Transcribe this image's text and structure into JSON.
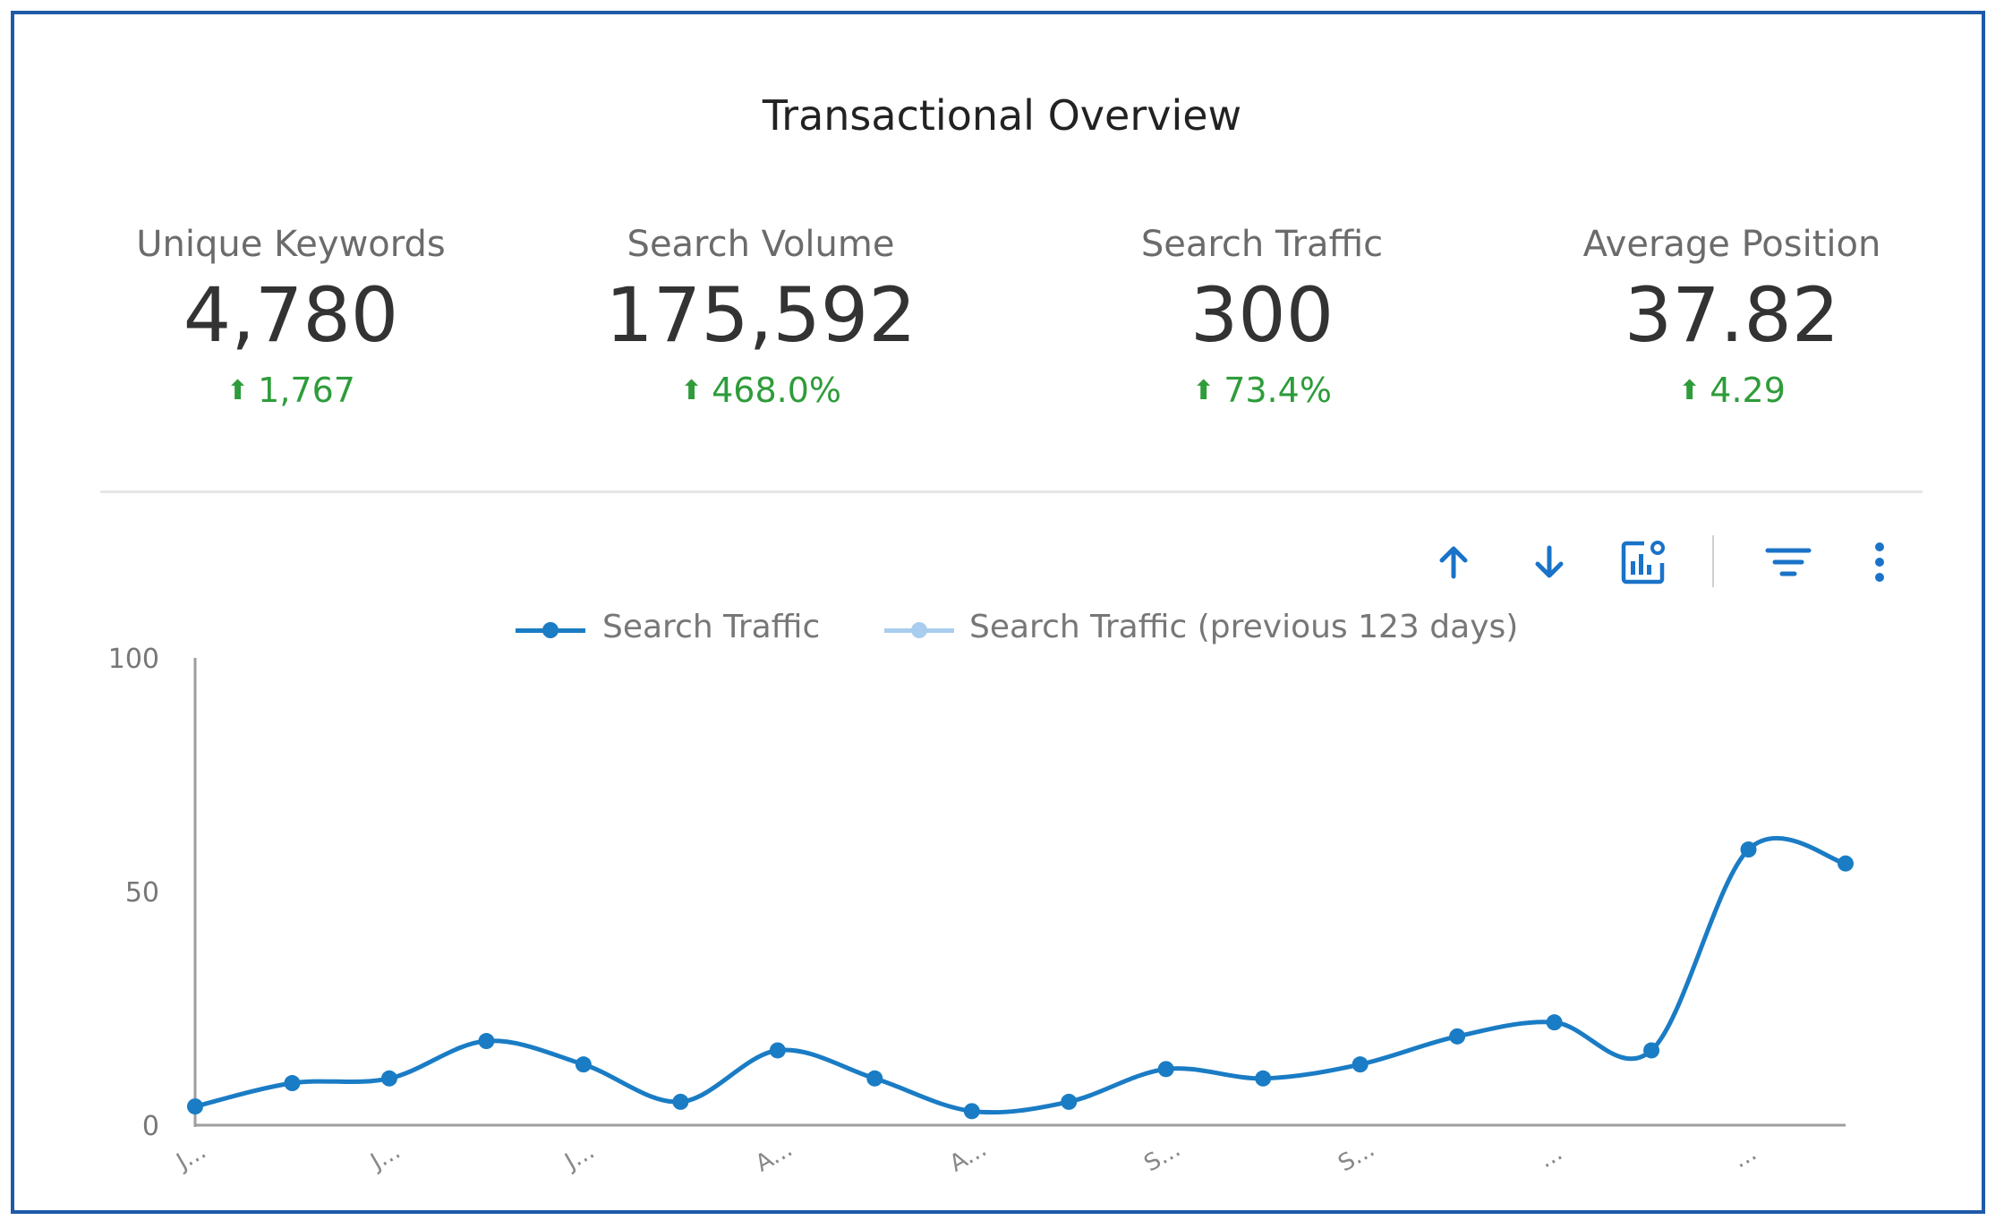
{
  "title": "Transactional Overview",
  "kpis": [
    {
      "label": "Unique Keywords",
      "value": "4,780",
      "change": "1,767"
    },
    {
      "label": "Search Volume",
      "value": "175,592",
      "change": "468.0%"
    },
    {
      "label": "Search Traffic",
      "value": "300",
      "change": "73.4%"
    },
    {
      "label": "Average Position",
      "value": "37.82",
      "change": "4.29"
    }
  ],
  "colors": {
    "accent": "#1a73c8",
    "series_current": "#1a7cc4",
    "series_previous": "#a9cdee",
    "positive": "#2e9c3a",
    "frame": "#1f5aa8"
  },
  "toolbar": {
    "icons": [
      "arrow-up-icon",
      "arrow-down-icon",
      "chart-settings-icon",
      "filter-icon",
      "more-vert-icon"
    ]
  },
  "chart_data": {
    "type": "line",
    "ylim": [
      0,
      100
    ],
    "y_ticks": [
      0,
      50,
      100
    ],
    "grid": false,
    "legend_position": "top",
    "x_tick_labels": [
      "J...",
      "J...",
      "J...",
      "A...",
      "A...",
      "S...",
      "S...",
      "...",
      "..."
    ],
    "series": [
      {
        "name": "Search Traffic",
        "color": "#1a7cc4",
        "values": [
          4,
          9,
          10,
          18,
          13,
          5,
          16,
          10,
          3,
          5,
          12,
          10,
          13,
          19,
          22,
          16,
          59,
          56
        ]
      },
      {
        "name": "Search Traffic (previous 123 days)",
        "color": "#a9cdee",
        "values": []
      }
    ]
  }
}
